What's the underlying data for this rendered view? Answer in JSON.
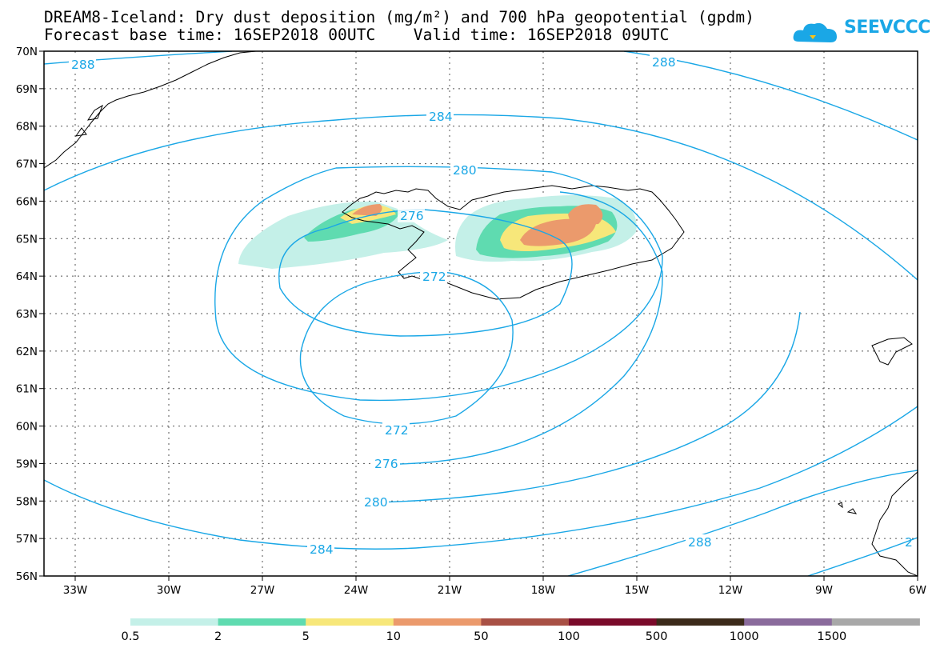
{
  "header": {
    "title_line1": "DREAM8-Iceland: Dry dust deposition (mg/m²) and 700 hPa geopotential (gpdm)",
    "title_line2": "Forecast base time: 16SEP2018 00UTC    Valid time: 16SEP2018 09UTC"
  },
  "logo": {
    "text": "SEEVCCC",
    "color": "#1aa7e6"
  },
  "map": {
    "lon_range": [
      -34,
      -6
    ],
    "lat_range": [
      56,
      70
    ],
    "lon_ticks": [
      "33W",
      "30W",
      "27W",
      "24W",
      "21W",
      "18W",
      "15W",
      "12W",
      "9W",
      "6W"
    ],
    "lat_ticks": [
      "70N",
      "69N",
      "68N",
      "67N",
      "66N",
      "65N",
      "64N",
      "63N",
      "62N",
      "61N",
      "60N",
      "59N",
      "58N",
      "57N",
      "56N"
    ],
    "grid": "dotted",
    "contour_color": "#1aa7e6",
    "contour_labels": [
      "288",
      "288",
      "284",
      "280",
      "276",
      "272",
      "272",
      "276",
      "280",
      "284",
      "288",
      "2"
    ]
  },
  "colorbar": {
    "colors": [
      "#c4f0e8",
      "#5fdbb0",
      "#f7e77a",
      "#eb9a6c",
      "#a85045",
      "#7a0a2a",
      "#3b2a1a",
      "#8a6b9c",
      "#a8a8a8"
    ],
    "labels": [
      "0.5",
      "2",
      "5",
      "10",
      "50",
      "100",
      "500",
      "1000",
      "1500"
    ]
  }
}
